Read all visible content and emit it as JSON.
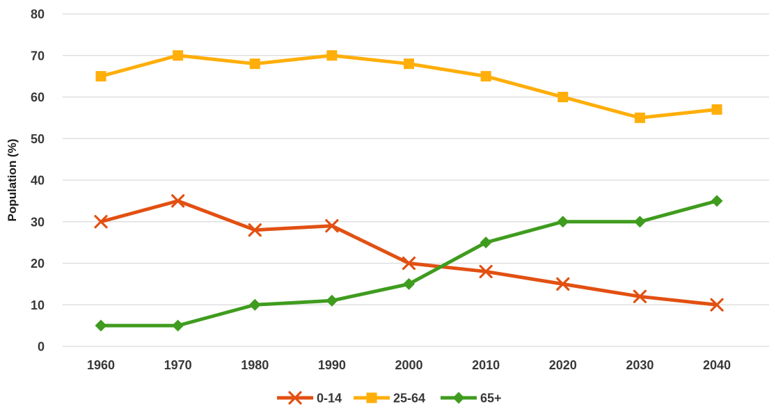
{
  "chart_data": {
    "type": "line",
    "categories": [
      "1960",
      "1970",
      "1980",
      "1990",
      "2000",
      "2010",
      "2020",
      "2030",
      "2040"
    ],
    "series": [
      {
        "name": "0-14",
        "values": [
          30,
          35,
          28,
          29,
          20,
          18,
          15,
          12,
          10
        ],
        "color": "#E25012",
        "marker": "x"
      },
      {
        "name": "25-64",
        "values": [
          65,
          70,
          68,
          70,
          68,
          65,
          60,
          55,
          57
        ],
        "color": "#FFAE0A",
        "marker": "square"
      },
      {
        "name": "65+",
        "values": [
          5,
          5,
          10,
          11,
          15,
          25,
          30,
          30,
          35
        ],
        "color": "#3F9C1E",
        "marker": "diamond"
      }
    ],
    "title": "",
    "xlabel": "",
    "ylabel": "Population (%)",
    "ylim": [
      0,
      80
    ],
    "ytick_step": 10,
    "grid": true,
    "legend_position": "bottom"
  },
  "colors": {
    "grid": "#D9D9D9",
    "text": "#383838",
    "background": "#FFFFFF"
  }
}
